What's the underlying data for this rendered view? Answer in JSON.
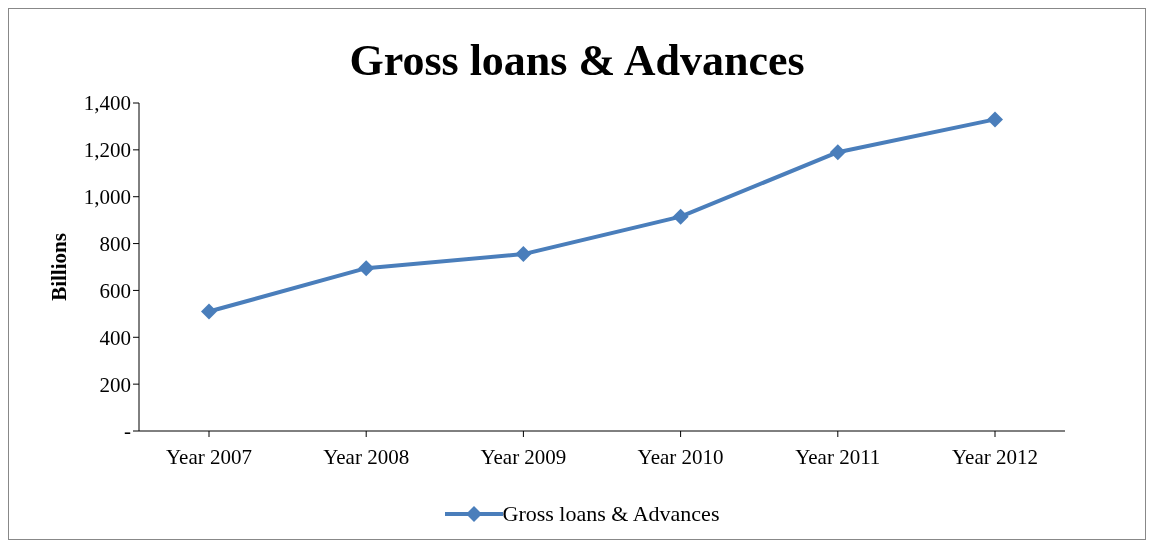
{
  "chart_data": {
    "type": "line",
    "title": "Gross loans & Advances",
    "ylabel": "Billions",
    "categories": [
      "Year 2007",
      "Year 2008",
      "Year 2009",
      "Year 2010",
      "Year 2011",
      "Year 2012"
    ],
    "series": [
      {
        "name": "Gross loans & Advances",
        "color": "#4a7ebb",
        "values": [
          510,
          695,
          755,
          915,
          1190,
          1330
        ]
      }
    ],
    "ylim": [
      0,
      1400
    ],
    "yticks": [
      {
        "value": 0,
        "label": "-"
      },
      {
        "value": 200,
        "label": "200"
      },
      {
        "value": 400,
        "label": "400"
      },
      {
        "value": 600,
        "label": "600"
      },
      {
        "value": 800,
        "label": "800"
      },
      {
        "value": 1000,
        "label": "1,000"
      },
      {
        "value": 1200,
        "label": "1,200"
      },
      {
        "value": 1400,
        "label": "1,400"
      }
    ],
    "grid": false,
    "legend": "bottom",
    "marker": "diamond",
    "line_style": "solid"
  }
}
